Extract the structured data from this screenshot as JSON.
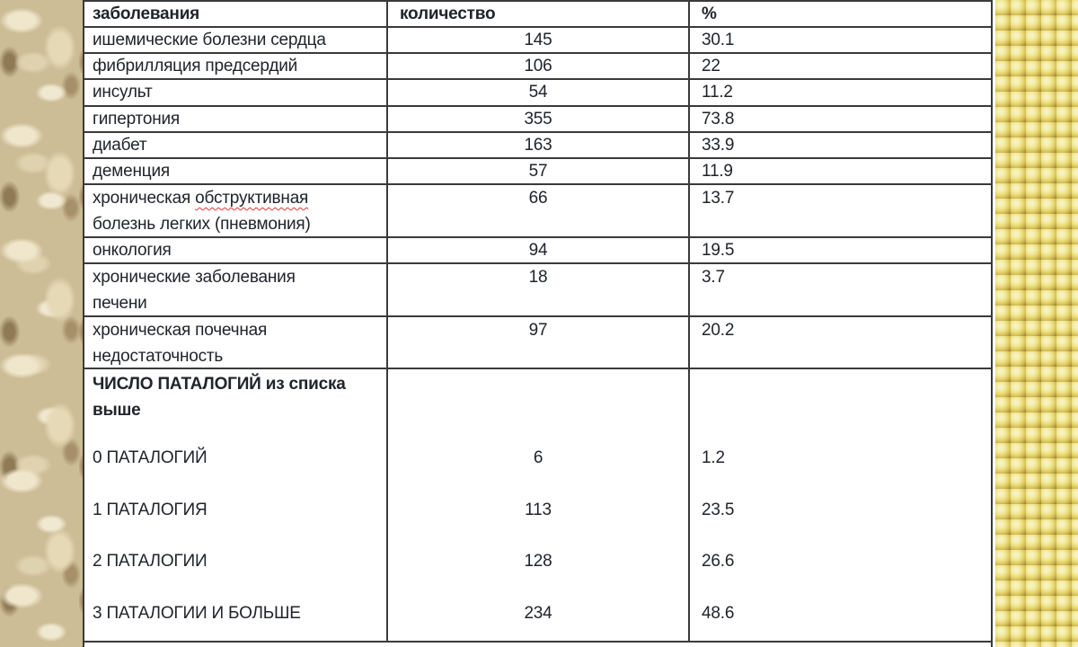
{
  "chart_data": {
    "type": "table",
    "columns": {
      "disease": "заболевания",
      "count": "количество",
      "percent": "%"
    },
    "rows": [
      {
        "disease": "ишемические болезни сердца",
        "count": "145",
        "percent": "30.1"
      },
      {
        "disease": "фибрилляция предсердий",
        "count": "106",
        "percent": "22"
      },
      {
        "disease": "инсульт",
        "count": "54",
        "percent": "11.2"
      },
      {
        "disease": "гипертония",
        "count": "355",
        "percent": "73.8"
      },
      {
        "disease": "диабет",
        "count": "163",
        "percent": "33.9"
      },
      {
        "disease": "деменция",
        "count": "57",
        "percent": "11.9"
      },
      {
        "line1_normal": "хроническая ",
        "line1_misspelled": "обструктивная",
        "line2": "болезнь легких (пневмония)",
        "count": "66",
        "percent": "13.7"
      },
      {
        "disease": "онкология",
        "count": "94",
        "percent": "19.5"
      },
      {
        "line1": "хронические заболевания",
        "line2": "печени",
        "count": "18",
        "percent": "3.7"
      },
      {
        "line1": "хроническая почечная",
        "line2": "недостаточность",
        "count": "97",
        "percent": "20.2"
      }
    ],
    "section": {
      "heading_line1": "ЧИСЛО ПАТАЛОГИЙ из списка",
      "heading_line2": "выше",
      "rows": [
        {
          "label": "0 ПАТАЛОГИЙ",
          "count": "6",
          "percent": "1.2"
        },
        {
          "label": "1 ПАТАЛОГИЯ",
          "count": "113",
          "percent": "23.5"
        },
        {
          "label": "2 ПАТАЛОГИИ",
          "count": "128",
          "percent": "26.6"
        },
        {
          "label": "3 ПАТАЛОГИИ И БОЛЬШЕ",
          "count": "234",
          "percent": "48.6"
        }
      ]
    }
  },
  "decor": {
    "left_photo": "oat-flakes",
    "right_photo": "millet-grains"
  },
  "colors": {
    "background": "#ffffff",
    "text": "#20242b",
    "border": "#3a3a3a",
    "spellcheck_underline": "#e03636",
    "oats_base": "#cdbd97",
    "millet_base": "#cdb84e"
  }
}
